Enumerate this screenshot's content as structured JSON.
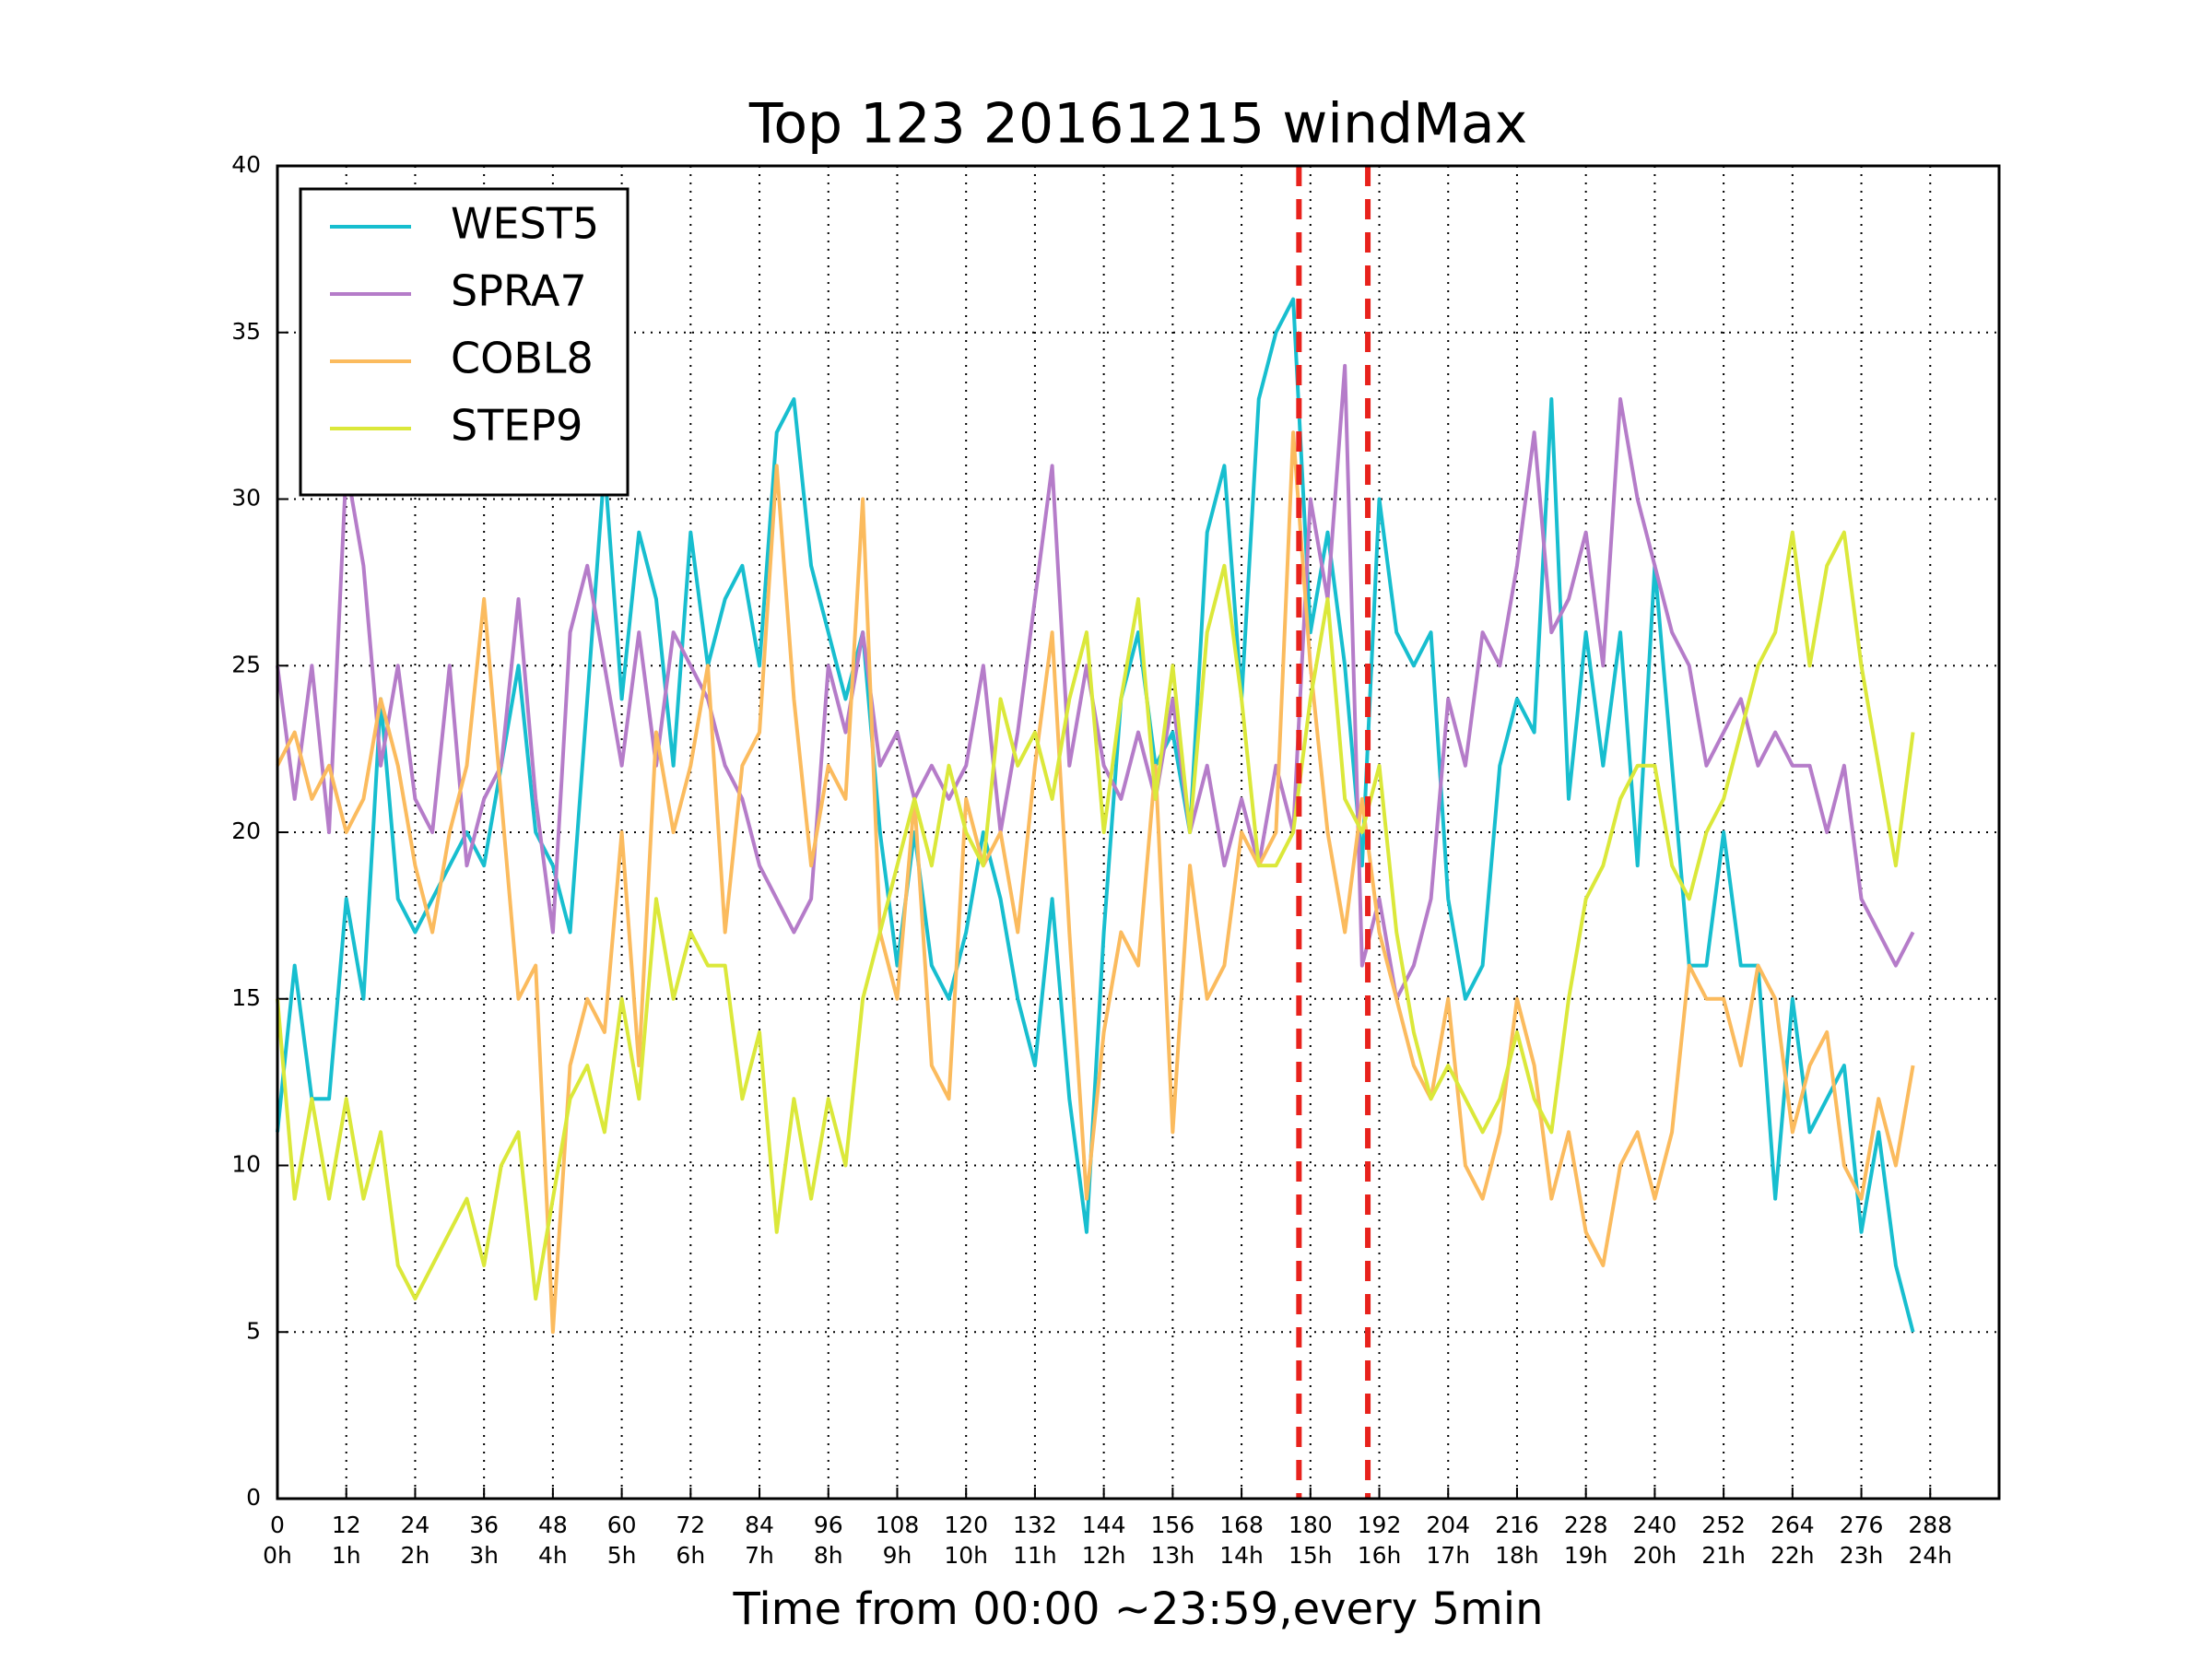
{
  "chart_data": {
    "type": "line",
    "title": "Top 123 20161215 windMax",
    "x_label": "Time from 00:00 ~23:59,every 5min",
    "x": [
      0,
      3,
      6,
      9,
      12,
      15,
      18,
      21,
      24,
      27,
      30,
      33,
      36,
      39,
      42,
      45,
      48,
      51,
      54,
      57,
      60,
      63,
      66,
      69,
      72,
      75,
      78,
      81,
      84,
      87,
      90,
      93,
      96,
      99,
      102,
      105,
      108,
      111,
      114,
      117,
      120,
      123,
      126,
      129,
      132,
      135,
      138,
      141,
      144,
      147,
      150,
      153,
      156,
      159,
      162,
      165,
      168,
      171,
      174,
      177,
      180,
      183,
      186,
      189,
      192,
      195,
      198,
      201,
      204,
      207,
      210,
      213,
      216,
      219,
      222,
      225,
      228,
      231,
      234,
      237,
      240,
      243,
      246,
      249,
      252,
      255,
      258,
      261,
      264,
      267,
      270,
      273,
      276,
      279,
      282,
      285
    ],
    "series": [
      {
        "name": "WEST5",
        "color": "#17becf",
        "values": [
          11,
          16,
          12,
          12,
          18,
          15,
          24,
          18,
          17,
          18,
          19,
          20,
          19,
          22,
          25,
          20,
          19,
          17,
          24,
          31,
          24,
          29,
          27,
          22,
          29,
          25,
          27,
          28,
          25,
          32,
          33,
          28,
          26,
          24,
          26,
          20,
          16,
          20,
          16,
          15,
          17,
          20,
          18,
          15,
          13,
          18,
          12,
          8,
          17,
          24,
          26,
          22,
          23,
          20,
          29,
          31,
          24,
          33,
          35,
          36,
          26,
          29,
          25,
          19,
          30,
          26,
          25,
          26,
          18,
          15,
          16,
          22,
          24,
          23,
          33,
          21,
          26,
          22,
          26,
          19,
          28,
          22,
          16,
          16,
          20,
          16,
          16,
          9,
          15,
          11,
          12,
          13,
          8,
          11,
          7,
          5
        ]
      },
      {
        "name": "SPRA7",
        "color": "#b57cc9",
        "values": [
          25,
          21,
          25,
          20,
          31,
          28,
          22,
          25,
          21,
          20,
          25,
          19,
          21,
          22,
          27,
          21,
          17,
          26,
          28,
          25,
          22,
          26,
          22,
          26,
          25,
          24,
          22,
          21,
          19,
          18,
          17,
          18,
          25,
          23,
          26,
          22,
          23,
          21,
          22,
          21,
          22,
          25,
          20,
          23,
          27,
          31,
          22,
          25,
          22,
          21,
          23,
          21,
          24,
          20,
          22,
          19,
          21,
          19,
          22,
          20,
          30,
          27,
          34,
          16,
          18,
          15,
          16,
          18,
          24,
          22,
          26,
          25,
          28,
          32,
          26,
          27,
          29,
          25,
          33,
          30,
          28,
          26,
          25,
          22,
          23,
          24,
          22,
          23,
          22,
          22,
          20,
          22,
          18,
          17,
          16,
          17
        ]
      },
      {
        "name": "COBL8",
        "color": "#fbbb5e",
        "values": [
          22,
          23,
          21,
          22,
          20,
          21,
          24,
          22,
          19,
          17,
          20,
          22,
          27,
          21,
          15,
          16,
          5,
          13,
          15,
          14,
          20,
          13,
          23,
          20,
          22,
          25,
          17,
          22,
          23,
          31,
          24,
          19,
          22,
          21,
          30,
          17,
          15,
          21,
          13,
          12,
          21,
          19,
          20,
          17,
          22,
          26,
          17,
          9,
          14,
          17,
          16,
          22,
          11,
          19,
          15,
          16,
          20,
          19,
          20,
          32,
          25,
          20,
          17,
          21,
          17,
          15,
          13,
          12,
          15,
          10,
          9,
          11,
          15,
          13,
          9,
          11,
          8,
          7,
          10,
          11,
          9,
          11,
          16,
          15,
          15,
          13,
          16,
          15,
          11,
          13,
          14,
          10,
          9,
          12,
          10,
          13
        ]
      },
      {
        "name": "STEP9",
        "color": "#dbe83a",
        "values": [
          15,
          9,
          12,
          9,
          12,
          9,
          11,
          7,
          6,
          7,
          8,
          9,
          7,
          10,
          11,
          6,
          9,
          12,
          13,
          11,
          15,
          12,
          18,
          15,
          17,
          16,
          16,
          12,
          14,
          8,
          12,
          9,
          12,
          10,
          15,
          17,
          19,
          21,
          19,
          22,
          20,
          19,
          24,
          22,
          23,
          21,
          24,
          26,
          20,
          24,
          27,
          21,
          25,
          20,
          26,
          28,
          24,
          19,
          19,
          20,
          24,
          27,
          21,
          20,
          22,
          17,
          14,
          12,
          13,
          12,
          11,
          12,
          14,
          12,
          11,
          15,
          18,
          19,
          21,
          22,
          22,
          19,
          18,
          20,
          21,
          23,
          25,
          26,
          29,
          25,
          28,
          29,
          25,
          22,
          19,
          23
        ]
      }
    ],
    "xlim": [
      0,
      300
    ],
    "ylim": [
      0,
      40
    ],
    "xticks": [
      0,
      12,
      24,
      36,
      48,
      60,
      72,
      84,
      96,
      108,
      120,
      132,
      144,
      156,
      168,
      180,
      192,
      204,
      216,
      228,
      240,
      252,
      264,
      276,
      288
    ],
    "xtick_sublabels": [
      "0h",
      "1h",
      "2h",
      "3h",
      "4h",
      "5h",
      "6h",
      "7h",
      "8h",
      "9h",
      "10h",
      "11h",
      "12h",
      "13h",
      "14h",
      "15h",
      "16h",
      "17h",
      "18h",
      "19h",
      "20h",
      "21h",
      "22h",
      "23h",
      "24h"
    ],
    "yticks": [
      0,
      5,
      10,
      15,
      20,
      25,
      30,
      35,
      40
    ],
    "vlines": [
      {
        "value": 178,
        "color": "#e8221c"
      },
      {
        "value": 190,
        "color": "#e8221c"
      }
    ],
    "grid": true,
    "legend": "upper left"
  }
}
